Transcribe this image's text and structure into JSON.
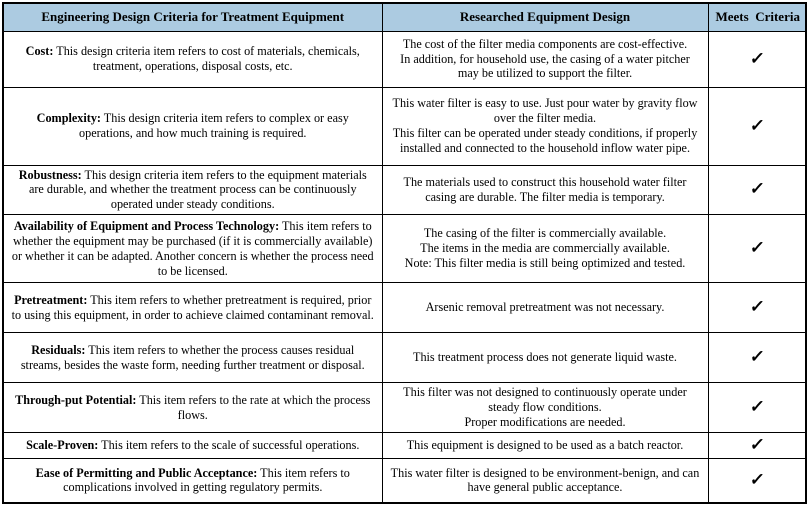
{
  "table": {
    "check_symbol": "✓",
    "header_bg": "#ACCBE1",
    "border_color": "#000000",
    "headers": [
      "Engineering Design Criteria for Treatment Equipment",
      "Researched Equipment Design",
      "Meets  Criteria"
    ],
    "rows": [
      {
        "term": "Cost:",
        "text": "This design criteria item refers to cost of materials, chemicals, treatment, operations, disposal costs, etc.",
        "design": "The cost of the filter media components are cost-effective.\nIn addition, for household use, the casing of a water pitcher may be utilized to support the filter.",
        "meets": true
      },
      {
        "term": "Complexity:",
        "text": "This design criteria item refers to complex or easy operations, and how much training is required.",
        "design": "This water filter is easy to use. Just pour water by gravity flow over the filter media.\nThis filter can be operated under steady conditions, if properly installed and connected to the household inflow water pipe.",
        "meets": true
      },
      {
        "term": "Robustness:",
        "text": "This design criteria item refers to the equipment materials are durable, and whether the treatment process can be continuously operated under steady conditions.",
        "design": "The materials used to construct this household water filter casing are durable. The filter media is temporary.",
        "meets": true
      },
      {
        "term": "Availability of Equipment and Process Technology:",
        "text": "This item refers to whether the equipment may be purchased (if it is commercially available) or whether it can be adapted. Another concern is whether the process need to be licensed.",
        "design": "The casing of the filter is commercially available.\nThe items in the media are commercially available.\nNote: This filter media is still being optimized and tested.",
        "meets": true
      },
      {
        "term": "Pretreatment:",
        "text": "This item refers to whether pretreatment is required, prior to using this equipment, in order to achieve claimed contaminant removal.",
        "design": "Arsenic removal pretreatment was not necessary.",
        "meets": true
      },
      {
        "term": "Residuals:",
        "text": "This item refers to whether the process causes residual streams, besides the waste form, needing further treatment or disposal.",
        "design": "This treatment process does not generate liquid waste.",
        "meets": true
      },
      {
        "term": "Through-put Potential:",
        "text": "This item refers to the rate at which the process flows.",
        "design": "This filter was not designed to continuously operate under steady flow conditions.\nProper modifications are needed.",
        "meets": true
      },
      {
        "term": "Scale-Proven:",
        "text": "This item refers to the scale of successful operations.",
        "design": "This equipment is designed to be used as a batch reactor.",
        "meets": true
      },
      {
        "term": "Ease of Permitting and Public Acceptance:",
        "text": "This item refers to complications involved in getting regulatory permits.",
        "design": "This water filter is designed to be environment-benign, and can have general public acceptance.",
        "meets": true
      }
    ]
  }
}
